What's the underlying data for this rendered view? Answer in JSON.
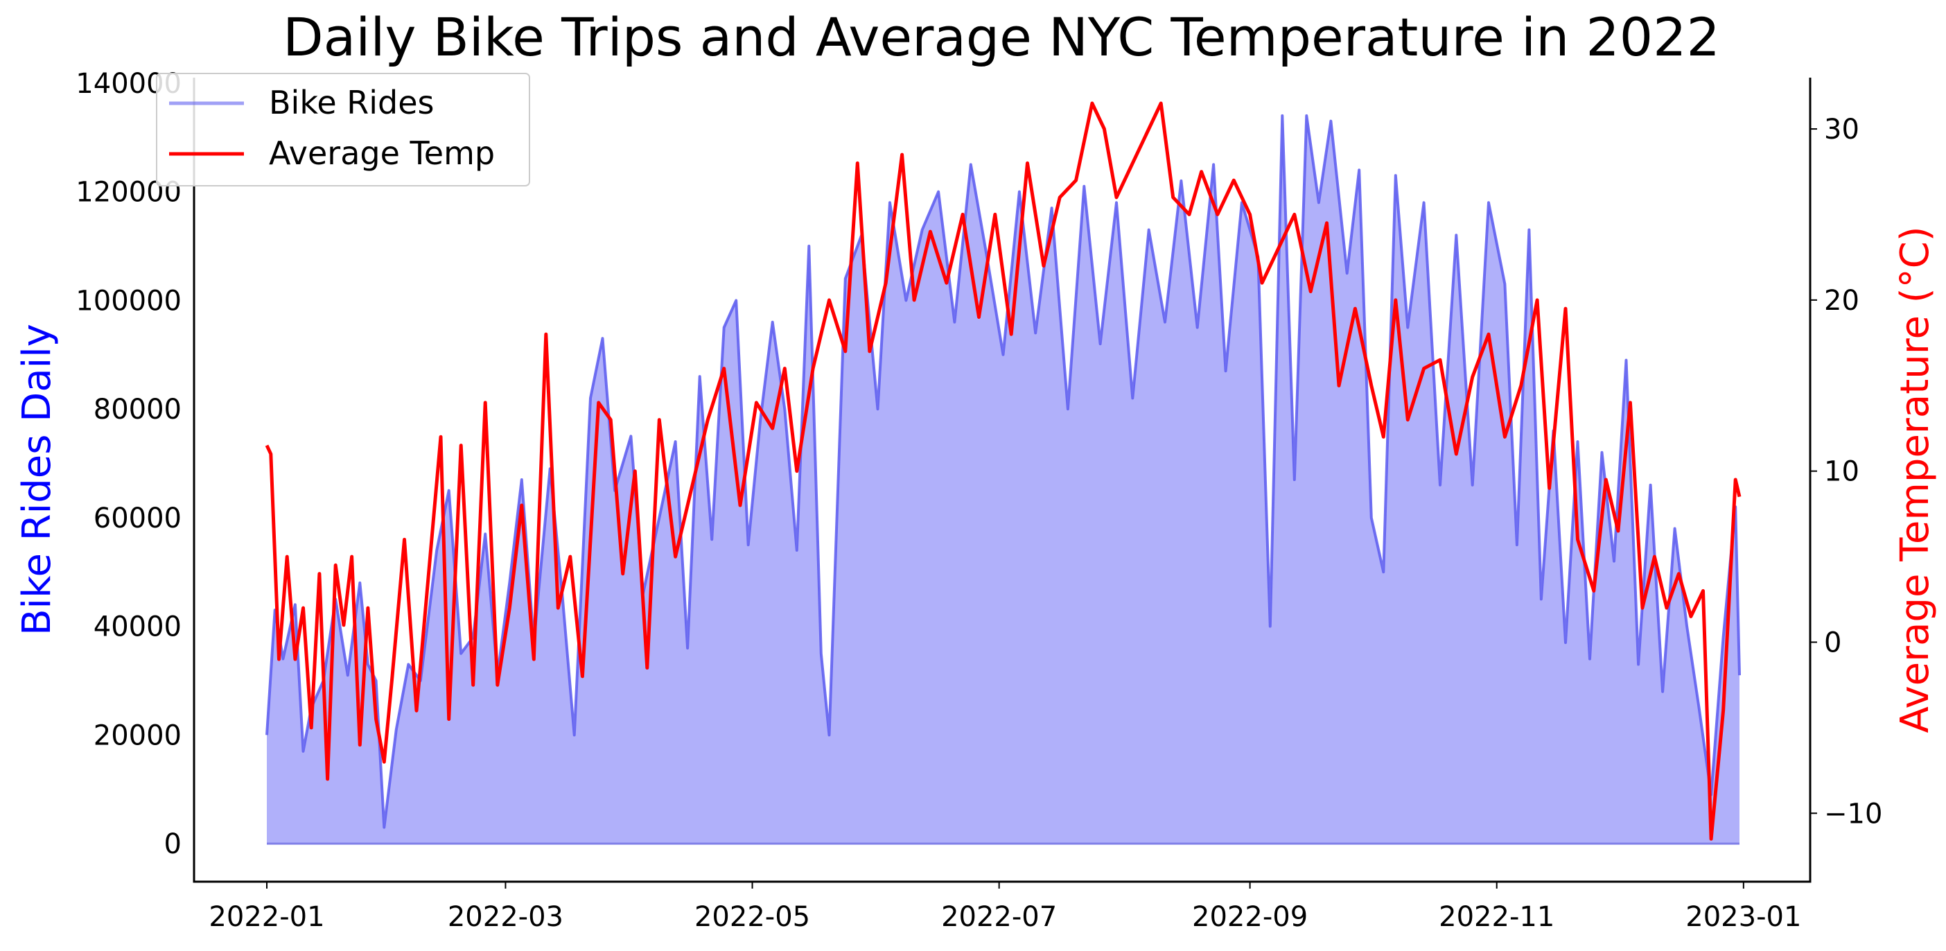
{
  "chart_data": {
    "type": "line",
    "title": "Daily Bike Trips and Average NYC Temperature in 2022",
    "xlabel": "",
    "ylabel": "Bike Rides Daily",
    "y2label": "Average Temperature (°C)",
    "xlim": [
      "2022-01-01",
      "2022-12-31"
    ],
    "ylim": [
      -7000,
      141000
    ],
    "y2lim": [
      -14,
      33
    ],
    "x_ticks": [
      "2022-01-01",
      "2022-03-01",
      "2022-05-01",
      "2022-07-01",
      "2022-09-01",
      "2022-11-01",
      "2023-01-01"
    ],
    "x_tick_labels": [
      "2022-01",
      "2022-03",
      "2022-05",
      "2022-07",
      "2022-09",
      "2022-11",
      "2023-01"
    ],
    "y_ticks": [
      0,
      20000,
      40000,
      60000,
      80000,
      100000,
      120000,
      140000
    ],
    "y_tick_labels": [
      "0",
      "20000",
      "40000",
      "60000",
      "80000",
      "100000",
      "120000",
      "140000"
    ],
    "y2_ticks": [
      -10,
      0,
      10,
      20,
      30
    ],
    "y2_tick_labels": [
      "−10",
      "0",
      "10",
      "20",
      "30"
    ],
    "grid": false,
    "legend": "top-left",
    "series": [
      {
        "name": "Bike Rides",
        "color": "#6060f0",
        "fill": "#b0b0fa",
        "axis": "left",
        "points": [
          [
            "2022-01-01",
            20000
          ],
          [
            "2022-01-03",
            43000
          ],
          [
            "2022-01-05",
            34000
          ],
          [
            "2022-01-08",
            44000
          ],
          [
            "2022-01-10",
            17000
          ],
          [
            "2022-01-12",
            25000
          ],
          [
            "2022-01-15",
            30000
          ],
          [
            "2022-01-18",
            45000
          ],
          [
            "2022-01-21",
            31000
          ],
          [
            "2022-01-24",
            48000
          ],
          [
            "2022-01-26",
            33000
          ],
          [
            "2022-01-28",
            30000
          ],
          [
            "2022-01-30",
            3000
          ],
          [
            "2022-02-02",
            21000
          ],
          [
            "2022-02-05",
            33000
          ],
          [
            "2022-02-08",
            30000
          ],
          [
            "2022-02-12",
            54000
          ],
          [
            "2022-02-15",
            65000
          ],
          [
            "2022-02-18",
            35000
          ],
          [
            "2022-02-21",
            38000
          ],
          [
            "2022-02-24",
            57000
          ],
          [
            "2022-02-27",
            31000
          ],
          [
            "2022-03-02",
            48000
          ],
          [
            "2022-03-05",
            67000
          ],
          [
            "2022-03-08",
            37000
          ],
          [
            "2022-03-12",
            69000
          ],
          [
            "2022-03-15",
            46000
          ],
          [
            "2022-03-18",
            20000
          ],
          [
            "2022-03-22",
            82000
          ],
          [
            "2022-03-25",
            93000
          ],
          [
            "2022-03-28",
            65000
          ],
          [
            "2022-04-01",
            75000
          ],
          [
            "2022-04-04",
            46000
          ],
          [
            "2022-04-08",
            60000
          ],
          [
            "2022-04-12",
            74000
          ],
          [
            "2022-04-15",
            36000
          ],
          [
            "2022-04-18",
            86000
          ],
          [
            "2022-04-21",
            56000
          ],
          [
            "2022-04-24",
            95000
          ],
          [
            "2022-04-27",
            100000
          ],
          [
            "2022-04-30",
            55000
          ],
          [
            "2022-05-03",
            78000
          ],
          [
            "2022-05-06",
            96000
          ],
          [
            "2022-05-09",
            80000
          ],
          [
            "2022-05-12",
            54000
          ],
          [
            "2022-05-15",
            110000
          ],
          [
            "2022-05-18",
            35000
          ],
          [
            "2022-05-20",
            20000
          ],
          [
            "2022-05-24",
            104000
          ],
          [
            "2022-05-28",
            112000
          ],
          [
            "2022-06-01",
            80000
          ],
          [
            "2022-06-04",
            118000
          ],
          [
            "2022-06-08",
            100000
          ],
          [
            "2022-06-12",
            113000
          ],
          [
            "2022-06-16",
            120000
          ],
          [
            "2022-06-20",
            96000
          ],
          [
            "2022-06-24",
            125000
          ],
          [
            "2022-06-28",
            108000
          ],
          [
            "2022-07-02",
            90000
          ],
          [
            "2022-07-06",
            120000
          ],
          [
            "2022-07-10",
            94000
          ],
          [
            "2022-07-14",
            117000
          ],
          [
            "2022-07-18",
            80000
          ],
          [
            "2022-07-22",
            121000
          ],
          [
            "2022-07-26",
            92000
          ],
          [
            "2022-07-30",
            118000
          ],
          [
            "2022-08-03",
            82000
          ],
          [
            "2022-08-07",
            113000
          ],
          [
            "2022-08-11",
            96000
          ],
          [
            "2022-08-15",
            122000
          ],
          [
            "2022-08-19",
            95000
          ],
          [
            "2022-08-23",
            125000
          ],
          [
            "2022-08-26",
            87000
          ],
          [
            "2022-08-30",
            118000
          ],
          [
            "2022-09-03",
            108000
          ],
          [
            "2022-09-06",
            40000
          ],
          [
            "2022-09-09",
            134000
          ],
          [
            "2022-09-12",
            67000
          ],
          [
            "2022-09-15",
            134000
          ],
          [
            "2022-09-18",
            118000
          ],
          [
            "2022-09-21",
            133000
          ],
          [
            "2022-09-25",
            105000
          ],
          [
            "2022-09-28",
            124000
          ],
          [
            "2022-10-01",
            60000
          ],
          [
            "2022-10-04",
            50000
          ],
          [
            "2022-10-07",
            123000
          ],
          [
            "2022-10-10",
            95000
          ],
          [
            "2022-10-14",
            118000
          ],
          [
            "2022-10-18",
            66000
          ],
          [
            "2022-10-22",
            112000
          ],
          [
            "2022-10-26",
            66000
          ],
          [
            "2022-10-30",
            118000
          ],
          [
            "2022-11-03",
            103000
          ],
          [
            "2022-11-06",
            55000
          ],
          [
            "2022-11-09",
            113000
          ],
          [
            "2022-11-12",
            45000
          ],
          [
            "2022-11-15",
            76000
          ],
          [
            "2022-11-18",
            37000
          ],
          [
            "2022-11-21",
            74000
          ],
          [
            "2022-11-24",
            34000
          ],
          [
            "2022-11-27",
            72000
          ],
          [
            "2022-11-30",
            52000
          ],
          [
            "2022-12-03",
            89000
          ],
          [
            "2022-12-06",
            33000
          ],
          [
            "2022-12-09",
            66000
          ],
          [
            "2022-12-12",
            28000
          ],
          [
            "2022-12-15",
            58000
          ],
          [
            "2022-12-18",
            40000
          ],
          [
            "2022-12-21",
            25000
          ],
          [
            "2022-12-24",
            9000
          ],
          [
            "2022-12-27",
            38000
          ],
          [
            "2022-12-30",
            62000
          ],
          [
            "2022-12-31",
            31000
          ]
        ]
      },
      {
        "name": "Average Temp",
        "color": "#ff0000",
        "axis": "right",
        "points": [
          [
            "2022-01-01",
            11.5
          ],
          [
            "2022-01-02",
            11.0
          ],
          [
            "2022-01-04",
            -1.0
          ],
          [
            "2022-01-06",
            5.0
          ],
          [
            "2022-01-08",
            -1.0
          ],
          [
            "2022-01-10",
            2.0
          ],
          [
            "2022-01-12",
            -5.0
          ],
          [
            "2022-01-14",
            4.0
          ],
          [
            "2022-01-16",
            -8.0
          ],
          [
            "2022-01-18",
            4.5
          ],
          [
            "2022-01-20",
            1.0
          ],
          [
            "2022-01-22",
            5.0
          ],
          [
            "2022-01-24",
            -6.0
          ],
          [
            "2022-01-26",
            2.0
          ],
          [
            "2022-01-28",
            -4.5
          ],
          [
            "2022-01-30",
            -7.0
          ],
          [
            "2022-02-01",
            -2.0
          ],
          [
            "2022-02-04",
            6.0
          ],
          [
            "2022-02-07",
            -4.0
          ],
          [
            "2022-02-10",
            4.0
          ],
          [
            "2022-02-13",
            12.0
          ],
          [
            "2022-02-15",
            -4.5
          ],
          [
            "2022-02-18",
            11.5
          ],
          [
            "2022-02-21",
            -2.5
          ],
          [
            "2022-02-24",
            14.0
          ],
          [
            "2022-02-27",
            -2.5
          ],
          [
            "2022-03-02",
            2.0
          ],
          [
            "2022-03-05",
            8.0
          ],
          [
            "2022-03-08",
            -1.0
          ],
          [
            "2022-03-11",
            18.0
          ],
          [
            "2022-03-14",
            2.0
          ],
          [
            "2022-03-17",
            5.0
          ],
          [
            "2022-03-20",
            -2.0
          ],
          [
            "2022-03-24",
            14.0
          ],
          [
            "2022-03-27",
            13.0
          ],
          [
            "2022-03-30",
            4.0
          ],
          [
            "2022-04-02",
            10.0
          ],
          [
            "2022-04-05",
            -1.5
          ],
          [
            "2022-04-08",
            13.0
          ],
          [
            "2022-04-12",
            5.0
          ],
          [
            "2022-04-16",
            9.0
          ],
          [
            "2022-04-20",
            13.0
          ],
          [
            "2022-04-24",
            16.0
          ],
          [
            "2022-04-28",
            8.0
          ],
          [
            "2022-05-02",
            14.0
          ],
          [
            "2022-05-06",
            12.5
          ],
          [
            "2022-05-09",
            16.0
          ],
          [
            "2022-05-12",
            10.0
          ],
          [
            "2022-05-16",
            16.0
          ],
          [
            "2022-05-20",
            20.0
          ],
          [
            "2022-05-24",
            17.0
          ],
          [
            "2022-05-27",
            28.0
          ],
          [
            "2022-05-30",
            17.0
          ],
          [
            "2022-06-03",
            21.0
          ],
          [
            "2022-06-07",
            28.5
          ],
          [
            "2022-06-10",
            20.0
          ],
          [
            "2022-06-14",
            24.0
          ],
          [
            "2022-06-18",
            21.0
          ],
          [
            "2022-06-22",
            25.0
          ],
          [
            "2022-06-26",
            19.0
          ],
          [
            "2022-06-30",
            25.0
          ],
          [
            "2022-07-04",
            18.0
          ],
          [
            "2022-07-08",
            28.0
          ],
          [
            "2022-07-12",
            22.0
          ],
          [
            "2022-07-16",
            26.0
          ],
          [
            "2022-07-20",
            27.0
          ],
          [
            "2022-07-24",
            31.5
          ],
          [
            "2022-07-27",
            30.0
          ],
          [
            "2022-07-30",
            26.0
          ],
          [
            "2022-08-03",
            28.0
          ],
          [
            "2022-08-07",
            30.0
          ],
          [
            "2022-08-10",
            31.5
          ],
          [
            "2022-08-13",
            26.0
          ],
          [
            "2022-08-17",
            25.0
          ],
          [
            "2022-08-20",
            27.5
          ],
          [
            "2022-08-24",
            25.0
          ],
          [
            "2022-08-28",
            27.0
          ],
          [
            "2022-09-01",
            25.0
          ],
          [
            "2022-09-04",
            21.0
          ],
          [
            "2022-09-08",
            23.0
          ],
          [
            "2022-09-12",
            25.0
          ],
          [
            "2022-09-16",
            20.5
          ],
          [
            "2022-09-20",
            24.5
          ],
          [
            "2022-09-23",
            15.0
          ],
          [
            "2022-09-27",
            19.5
          ],
          [
            "2022-10-01",
            15.0
          ],
          [
            "2022-10-04",
            12.0
          ],
          [
            "2022-10-07",
            20.0
          ],
          [
            "2022-10-10",
            13.0
          ],
          [
            "2022-10-14",
            16.0
          ],
          [
            "2022-10-18",
            16.5
          ],
          [
            "2022-10-22",
            11.0
          ],
          [
            "2022-10-26",
            15.5
          ],
          [
            "2022-10-30",
            18.0
          ],
          [
            "2022-11-03",
            12.0
          ],
          [
            "2022-11-07",
            15.0
          ],
          [
            "2022-11-11",
            20.0
          ],
          [
            "2022-11-14",
            9.0
          ],
          [
            "2022-11-18",
            19.5
          ],
          [
            "2022-11-21",
            6.0
          ],
          [
            "2022-11-25",
            3.0
          ],
          [
            "2022-11-28",
            9.5
          ],
          [
            "2022-12-01",
            6.5
          ],
          [
            "2022-12-04",
            14.0
          ],
          [
            "2022-12-07",
            2.0
          ],
          [
            "2022-12-10",
            5.0
          ],
          [
            "2022-12-13",
            2.0
          ],
          [
            "2022-12-16",
            4.0
          ],
          [
            "2022-12-19",
            1.5
          ],
          [
            "2022-12-22",
            3.0
          ],
          [
            "2022-12-24",
            -11.5
          ],
          [
            "2022-12-27",
            -4.0
          ],
          [
            "2022-12-30",
            9.5
          ],
          [
            "2022-12-31",
            8.5
          ]
        ]
      }
    ]
  }
}
